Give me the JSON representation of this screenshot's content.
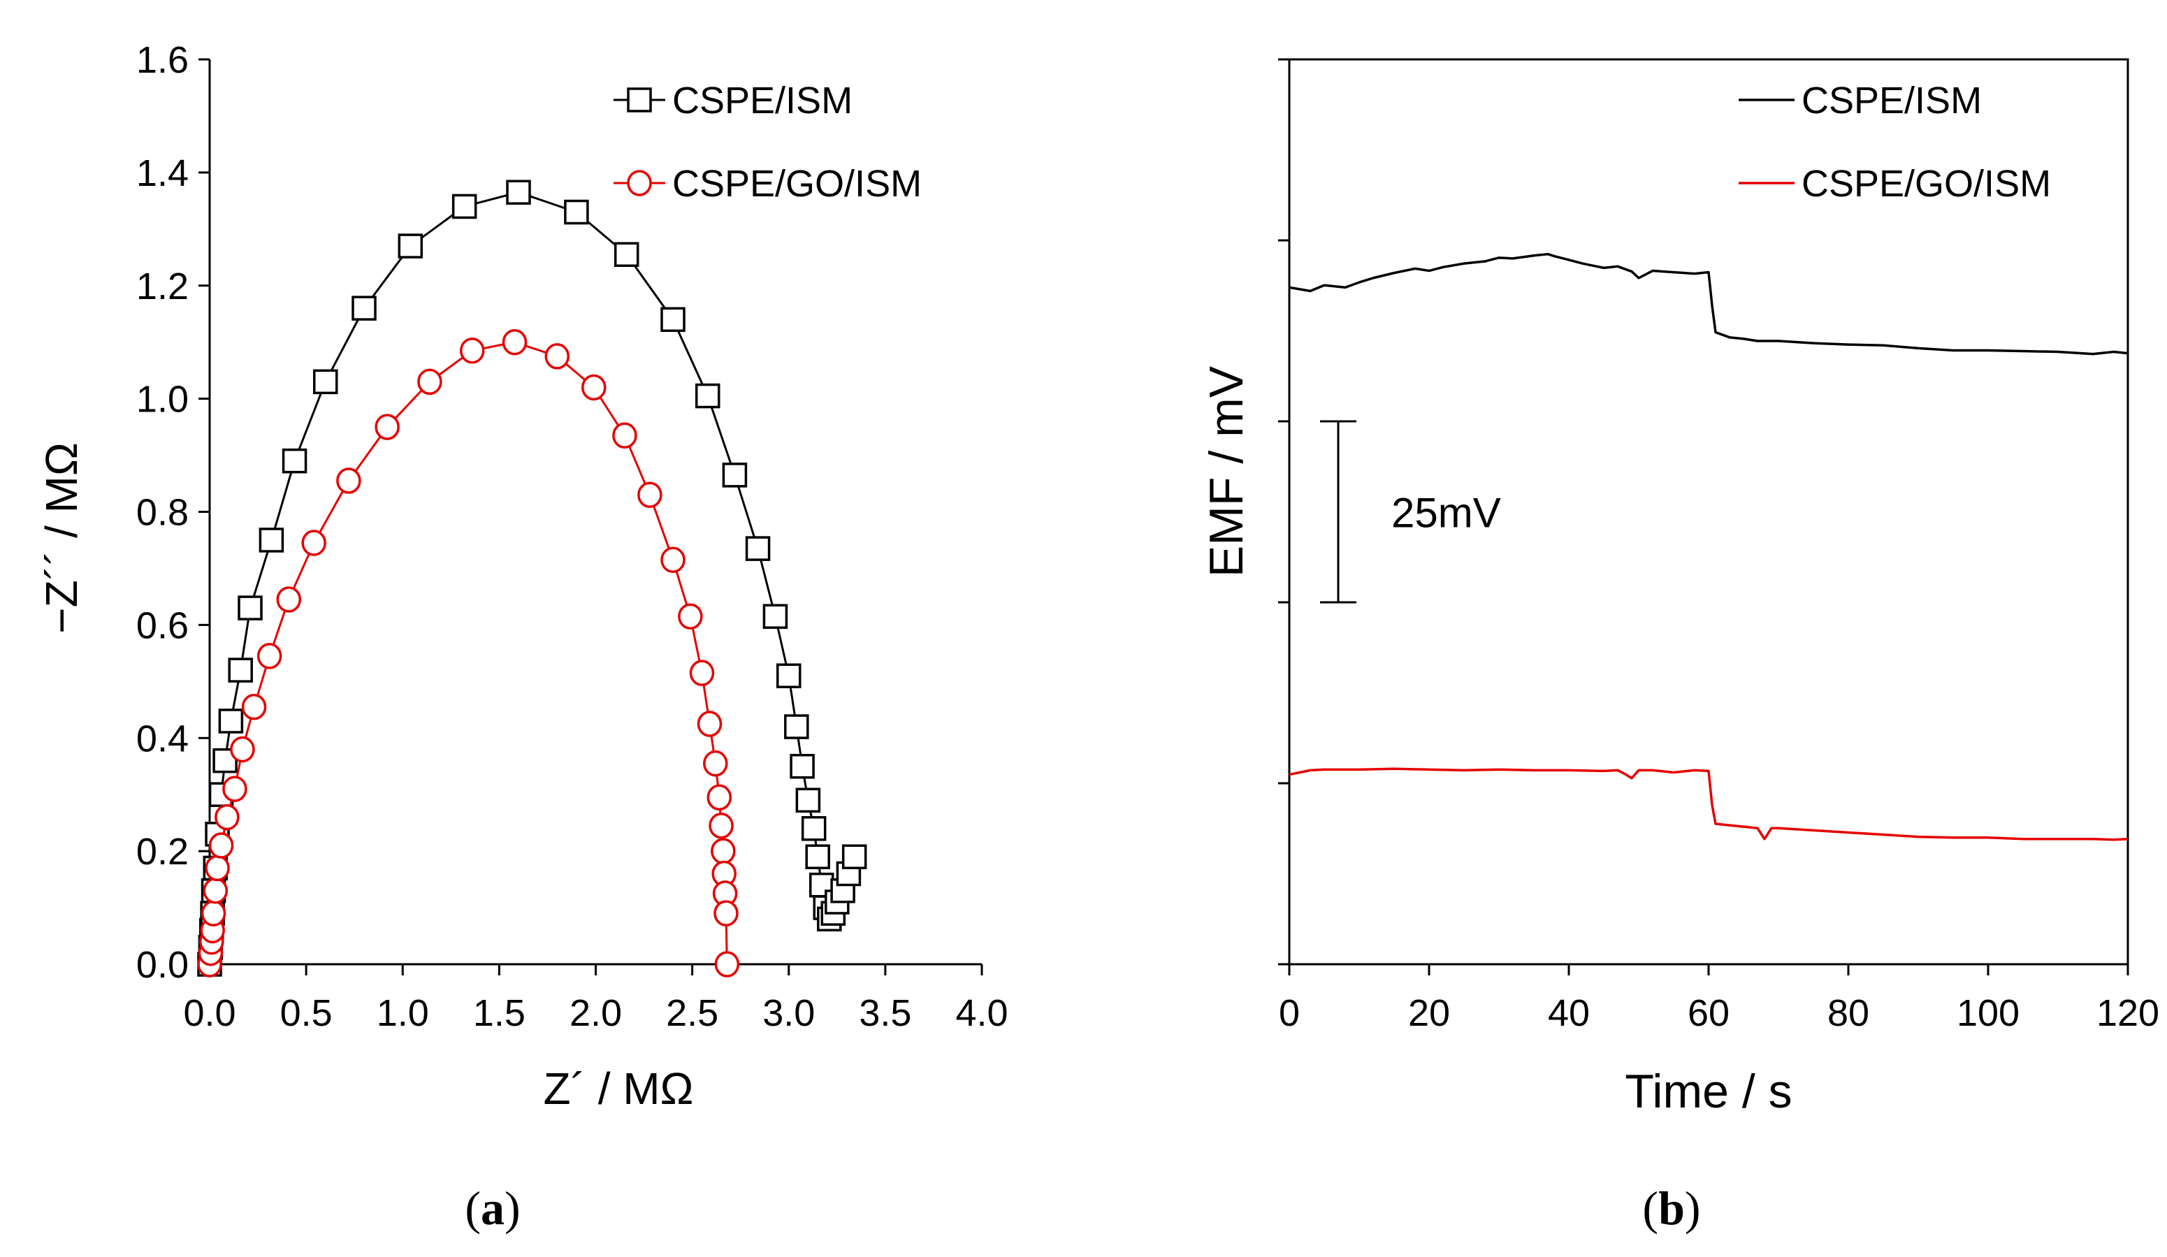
{
  "colors": {
    "series_black": "#000000",
    "series_red": "#e60000",
    "background": "#ffffff"
  },
  "chart_data": [
    {
      "panel": "a",
      "panel_label": "(a)",
      "panel_letter": "a",
      "type": "scatter",
      "xlabel": "Z´ / MΩ",
      "ylabel": "−Z´´ / MΩ",
      "xlim": [
        0,
        4.0
      ],
      "ylim": [
        0,
        1.6
      ],
      "xticks": [
        "0.0",
        "0.5",
        "1.0",
        "1.5",
        "2.0",
        "2.5",
        "3.0",
        "3.5",
        "4.0"
      ],
      "yticks": [
        "0.0",
        "0.2",
        "0.4",
        "0.6",
        "0.8",
        "1.0",
        "1.2",
        "1.4",
        "1.6"
      ],
      "legend_position": "top-right",
      "series": [
        {
          "name": "CSPE/ISM",
          "color": "#000000",
          "marker": "square",
          "x": [
            0.0,
            0.005,
            0.01,
            0.015,
            0.02,
            0.03,
            0.04,
            0.06,
            0.08,
            0.11,
            0.16,
            0.21,
            0.32,
            0.44,
            0.6,
            0.8,
            1.04,
            1.32,
            1.6,
            1.9,
            2.16,
            2.4,
            2.58,
            2.72,
            2.84,
            2.93,
            3.0,
            3.04,
            3.07,
            3.1,
            3.13,
            3.15,
            3.17,
            3.19,
            3.21,
            3.23,
            3.25,
            3.28,
            3.31,
            3.34
          ],
          "y": [
            0.0,
            0.03,
            0.06,
            0.09,
            0.13,
            0.17,
            0.23,
            0.3,
            0.36,
            0.43,
            0.52,
            0.63,
            0.75,
            0.89,
            1.03,
            1.16,
            1.27,
            1.34,
            1.365,
            1.33,
            1.255,
            1.14,
            1.005,
            0.865,
            0.735,
            0.615,
            0.51,
            0.42,
            0.35,
            0.29,
            0.24,
            0.19,
            0.14,
            0.1,
            0.08,
            0.09,
            0.11,
            0.13,
            0.16,
            0.19
          ]
        },
        {
          "name": "CSPE/GO/ISM",
          "color": "#e60000",
          "marker": "circle",
          "x": [
            0.0,
            0.005,
            0.01,
            0.015,
            0.02,
            0.03,
            0.04,
            0.06,
            0.09,
            0.13,
            0.17,
            0.23,
            0.31,
            0.41,
            0.54,
            0.72,
            0.92,
            1.14,
            1.36,
            1.58,
            1.8,
            1.99,
            2.15,
            2.28,
            2.4,
            2.49,
            2.55,
            2.59,
            2.62,
            2.64,
            2.65,
            2.66,
            2.665,
            2.67,
            2.675,
            2.68
          ],
          "y": [
            0.0,
            0.02,
            0.04,
            0.06,
            0.09,
            0.13,
            0.17,
            0.21,
            0.26,
            0.31,
            0.38,
            0.455,
            0.545,
            0.645,
            0.745,
            0.855,
            0.95,
            1.03,
            1.085,
            1.1,
            1.075,
            1.02,
            0.935,
            0.83,
            0.715,
            0.615,
            0.515,
            0.425,
            0.355,
            0.295,
            0.245,
            0.2,
            0.16,
            0.125,
            0.09,
            0.0
          ]
        }
      ]
    },
    {
      "panel": "b",
      "panel_label": "(b)",
      "panel_letter": "b",
      "type": "line",
      "xlabel": "Time / s",
      "ylabel": "EMF / mV",
      "xlim": [
        0,
        120
      ],
      "ylim": [
        0,
        125
      ],
      "xticks": [
        "0",
        "20",
        "40",
        "60",
        "80",
        "100",
        "120"
      ],
      "yticks_unlabeled": [
        0,
        25,
        50,
        75,
        100,
        125
      ],
      "legend_position": "top-right",
      "scale_bar": {
        "label": "25mV",
        "value_mv": 25,
        "from_mv": 50,
        "to_mv": 75,
        "x_s": 7
      },
      "series": [
        {
          "name": "CSPE/ISM",
          "color": "#000000",
          "x": [
            0,
            3,
            5,
            8,
            10,
            12,
            15,
            18,
            20,
            22,
            25,
            28,
            30,
            32,
            35,
            37,
            38,
            40,
            42,
            44,
            45,
            47,
            49,
            50,
            52,
            55,
            58,
            60,
            60.5,
            61,
            63,
            65,
            67,
            70,
            75,
            80,
            85,
            90,
            95,
            100,
            105,
            110,
            115,
            118,
            120
          ],
          "y": [
            93.5,
            93,
            93.8,
            93.5,
            94.2,
            94.8,
            95.5,
            96.1,
            95.8,
            96.3,
            96.8,
            97.1,
            97.6,
            97.5,
            97.9,
            98.1,
            97.8,
            97.3,
            96.8,
            96.4,
            96.2,
            96.4,
            95.7,
            94.8,
            95.8,
            95.6,
            95.4,
            95.6,
            91,
            87.3,
            86.6,
            86.4,
            86.1,
            86.1,
            85.8,
            85.6,
            85.5,
            85.1,
            84.8,
            84.8,
            84.7,
            84.6,
            84.3,
            84.6,
            84.4
          ]
        },
        {
          "name": "CSPE/GO/ISM",
          "color": "#e60000",
          "x": [
            0,
            3,
            5,
            10,
            15,
            20,
            25,
            30,
            35,
            40,
            45,
            47,
            48,
            49,
            50,
            52,
            55,
            58,
            60,
            60.5,
            61,
            63,
            65,
            67,
            68,
            69,
            70,
            75,
            80,
            85,
            90,
            95,
            100,
            105,
            110,
            115,
            118,
            120
          ],
          "y": [
            26.2,
            26.8,
            26.9,
            26.9,
            27,
            26.9,
            26.8,
            26.9,
            26.8,
            26.8,
            26.7,
            26.8,
            26.3,
            25.7,
            26.8,
            26.8,
            26.5,
            26.8,
            26.7,
            22,
            19.4,
            19.2,
            19,
            18.8,
            17.3,
            18.8,
            18.8,
            18.5,
            18.2,
            17.9,
            17.6,
            17.5,
            17.5,
            17.3,
            17.3,
            17.3,
            17.2,
            17.3
          ]
        }
      ]
    }
  ]
}
